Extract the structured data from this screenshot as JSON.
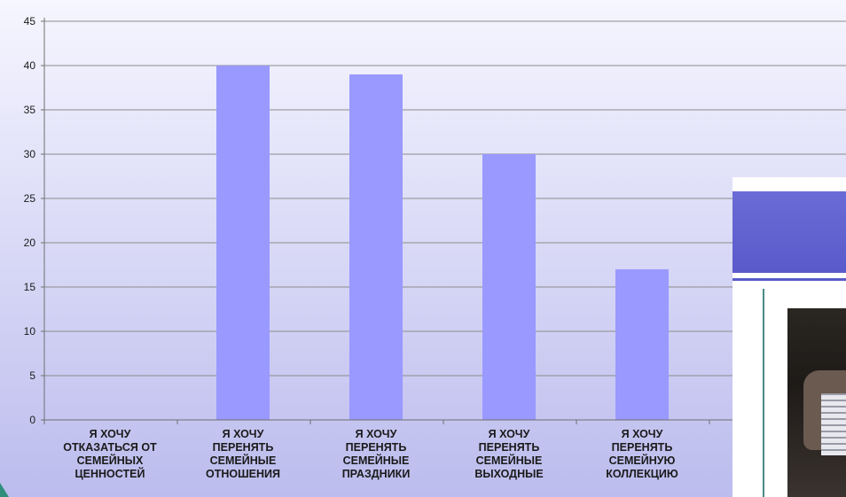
{
  "chart_data": {
    "type": "bar",
    "categories": [
      "Я ХОЧУ ОТКАЗАТЬСЯ ОТ СЕМЕЙНЫХ ЦЕННОСТЕЙ",
      "Я ХОЧУ ПЕРЕНЯТЬ СЕМЕЙНЫЕ ОТНОШЕНИЯ",
      "Я ХОЧУ ПЕРЕНЯТЬ СЕМЕЙНЫЕ ПРАЗДНИКИ",
      "Я ХОЧУ ПЕРЕНЯТЬ СЕМЕЙНЫЕ ВЫХОДНЫЕ",
      "Я ХОЧУ ПЕРЕНЯТЬ СЕМЕЙНУЮ КОЛЛЕКЦИЮ"
    ],
    "category_lines": [
      [
        "Я ХОЧУ",
        "ОТКАЗАТЬСЯ ОТ",
        "СЕМЕЙНЫХ",
        "ЦЕННОСТЕЙ"
      ],
      [
        "Я ХОЧУ",
        "ПЕРЕНЯТЬ",
        "СЕМЕЙНЫЕ",
        "ОТНОШЕНИЯ"
      ],
      [
        "Я ХОЧУ",
        "ПЕРЕНЯТЬ",
        "СЕМЕЙНЫЕ",
        "ПРАЗДНИКИ"
      ],
      [
        "Я ХОЧУ",
        "ПЕРЕНЯТЬ",
        "СЕМЕЙНЫЕ",
        "ВЫХОДНЫЕ"
      ],
      [
        "Я ХОЧУ",
        "ПЕРЕНЯТЬ",
        "СЕМЕЙНУЮ",
        "КОЛЛЕКЦИЮ"
      ]
    ],
    "values": [
      0,
      40,
      39,
      30,
      17
    ],
    "ylim": [
      0,
      45
    ],
    "yticks": [
      0,
      5,
      10,
      15,
      20,
      25,
      30,
      35,
      40,
      45
    ],
    "grid": true,
    "title": "",
    "xlabel": "",
    "ylabel": "",
    "colors": {
      "bar": "#9999ff",
      "plot_bg_top": "#f6f6ff",
      "plot_bg_bottom": "#bcbcee",
      "grid": "#8c8c8c"
    }
  },
  "slide_fragment": {
    "header_color": "#5a5acb",
    "rule_color": "#4a8a86",
    "photo_subject": "person-with-accordion"
  }
}
